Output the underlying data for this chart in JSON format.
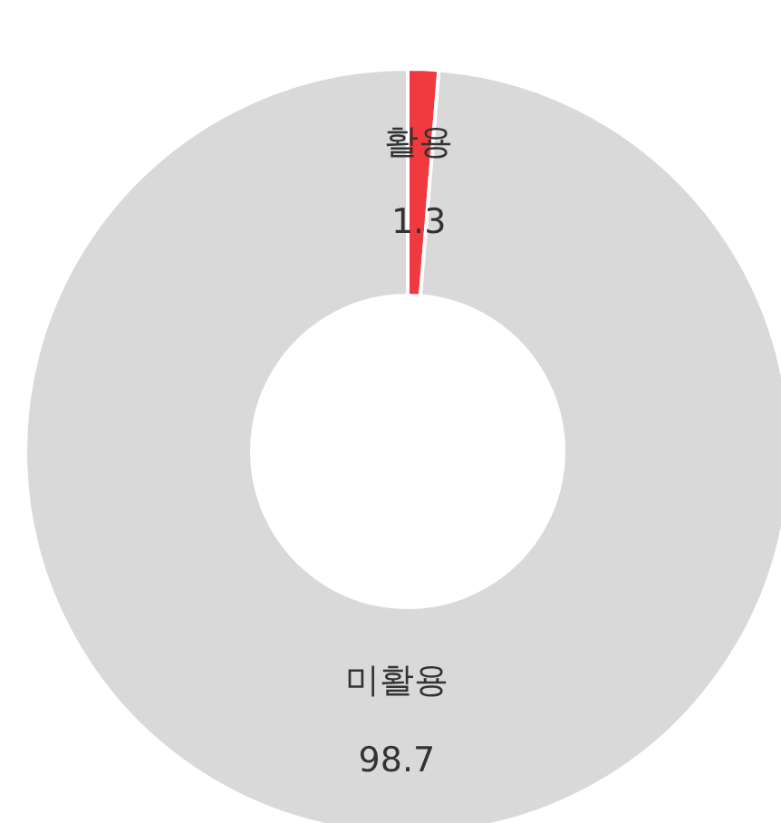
{
  "chart_data": {
    "type": "donut",
    "categories": [
      "활용",
      "미활용"
    ],
    "values": [
      1.3,
      98.7
    ],
    "colors": [
      "#f03a40",
      "#d9d9d9"
    ],
    "data_labels": true,
    "legend": false
  }
}
